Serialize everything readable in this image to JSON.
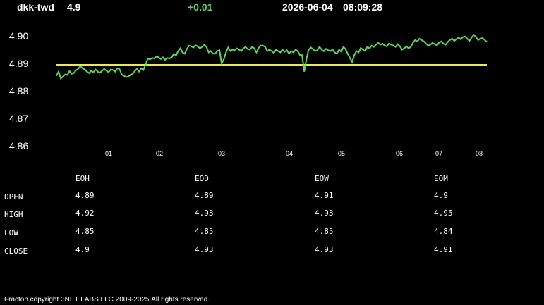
{
  "header": {
    "pair": "dkk-twd",
    "price": "4.9",
    "change": "+0.01",
    "date": "2026-06-04",
    "time": "08:09:28"
  },
  "colors": {
    "line": "#5cd65c",
    "reference": "#e8e85a",
    "change": "#5cd65c"
  },
  "chart_data": {
    "type": "line",
    "title": "",
    "xlabel": "",
    "ylabel": "",
    "ylim": [
      4.86,
      4.9
    ],
    "y_ticks": [
      "4.90",
      "4.89",
      "4.88",
      "4.87",
      "4.86"
    ],
    "x_ticks": [
      "01",
      "02",
      "03",
      "04",
      "05",
      "06",
      "07",
      "08"
    ],
    "reference_line": 4.8895,
    "series": [
      {
        "values": [
          4.8855,
          4.887,
          4.8845,
          4.8852,
          4.886,
          4.8858,
          4.8872,
          4.8862,
          4.8865,
          4.8875,
          4.888,
          4.889,
          4.8882,
          4.8878,
          4.887,
          4.8865,
          4.8873,
          4.8868,
          4.8878,
          4.887,
          4.8866,
          4.8873,
          4.888,
          4.8873,
          4.8868,
          4.8878,
          4.8876,
          4.887,
          4.8882,
          4.888,
          4.886,
          4.8855,
          4.885,
          4.8852,
          4.8858,
          4.8862,
          4.8872,
          4.888,
          4.887,
          4.8882,
          4.8876,
          4.8895,
          4.8918,
          4.8914,
          4.892,
          4.8918,
          4.8925,
          4.8922,
          4.8916,
          4.8922,
          4.8913,
          4.892,
          4.8918,
          4.8922,
          4.8935,
          4.8928,
          4.8945,
          4.8955,
          4.894,
          4.8935,
          4.8952,
          4.8965,
          4.8962,
          4.8958,
          4.8966,
          4.8962,
          4.8955,
          4.896,
          4.8968,
          4.896,
          4.894,
          4.8945,
          4.8935,
          4.8935,
          4.8945,
          4.8948,
          4.89,
          4.8915,
          4.894,
          4.8958,
          4.8945,
          4.895,
          4.8948,
          4.8955,
          4.895,
          4.8945,
          4.8955,
          4.896,
          4.8952,
          4.895,
          4.896,
          4.8955,
          4.894,
          4.8956,
          4.8965,
          4.8965,
          4.896,
          4.8945,
          4.895,
          4.8945,
          4.8938,
          4.895,
          4.8945,
          4.894,
          4.895,
          4.8942,
          4.8948,
          4.8935,
          4.8945,
          4.894,
          4.895,
          4.8945,
          4.893,
          4.893,
          4.887,
          4.8915,
          4.895,
          4.8958,
          4.8952,
          4.8945,
          4.8948,
          4.896,
          4.895,
          4.8944,
          4.8953,
          4.8948,
          4.8945,
          4.895,
          4.894,
          4.8935,
          4.895,
          4.8942,
          4.896,
          4.8952,
          4.8935,
          4.892,
          4.8905,
          4.893,
          4.8945,
          4.894,
          4.8956,
          4.895,
          4.8945,
          4.896,
          4.8955,
          4.8965,
          4.896,
          4.8968,
          4.8975,
          4.8968,
          4.8972,
          4.8965,
          4.8962,
          4.8973,
          4.8968,
          4.8965,
          4.896,
          4.897,
          4.8962,
          4.895,
          4.8955,
          4.8962,
          4.8955,
          4.896,
          4.8975,
          4.8985,
          4.898,
          4.899,
          4.8985,
          4.898,
          4.8972,
          4.8965,
          4.8968,
          4.8975,
          4.897,
          4.8965,
          4.8975,
          4.898,
          4.8972,
          4.8968,
          4.8978,
          4.8985,
          4.899,
          4.8982,
          4.8988,
          4.8994,
          4.8988,
          4.8996,
          4.8998,
          4.899,
          4.8982,
          4.8994,
          4.9004,
          4.8996,
          4.8985,
          4.899,
          4.8992,
          4.8986,
          4.8978
        ]
      }
    ],
    "grid": false,
    "legend": "none"
  },
  "table": {
    "columns": [
      "EOH",
      "EOD",
      "EOW",
      "EOM"
    ],
    "rows": [
      {
        "label": "OPEN",
        "values": [
          "4.89",
          "4.89",
          "4.91",
          "4.9"
        ]
      },
      {
        "label": "HIGH",
        "values": [
          "4.92",
          "4.93",
          "4.93",
          "4.95"
        ]
      },
      {
        "label": "LOW",
        "values": [
          "4.85",
          "4.85",
          "4.85",
          "4.84"
        ]
      },
      {
        "label": "CLOSE",
        "values": [
          "4.9",
          "4.93",
          "4.93",
          "4.91"
        ]
      }
    ]
  },
  "footer": "Fracton copyright 3NET LABS LLC 2009-2025.All rights reserved."
}
